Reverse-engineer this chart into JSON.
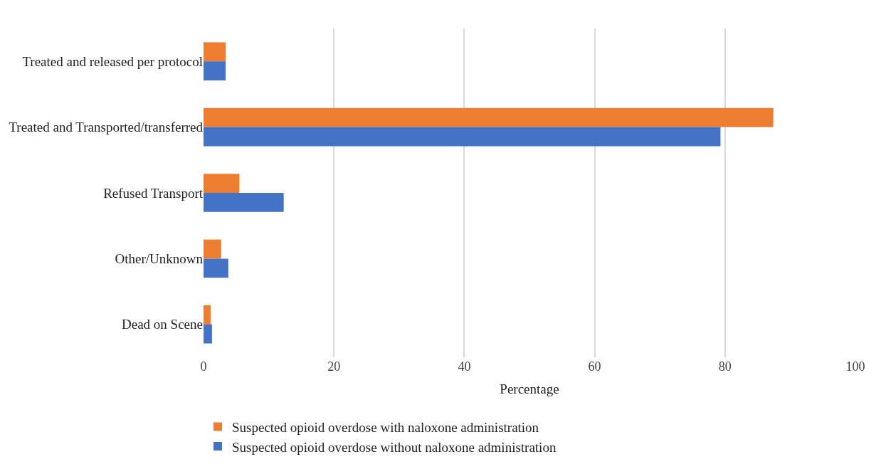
{
  "chart_data": {
    "type": "bar",
    "orientation": "horizontal",
    "xlabel": "Percentage",
    "categories": [
      "Treated and released per protocol",
      "Treated and Transported/transferred",
      "Refused Transport",
      "Other/Unknown",
      "Dead on Scene"
    ],
    "series": [
      {
        "name": "Suspected opioid overdose with naloxone administration",
        "color": "#ed7d31",
        "values": [
          3.4,
          87.4,
          5.5,
          2.7,
          1.1
        ]
      },
      {
        "name": "Suspected opioid overdose without naloxone administration",
        "color": "#4472c4",
        "values": [
          3.4,
          79.3,
          12.3,
          3.8,
          1.3
        ]
      }
    ],
    "xlim": [
      0,
      100
    ],
    "xticks": [
      0,
      20,
      40,
      60,
      80,
      100
    ],
    "grid": "x",
    "legend": "bottom"
  }
}
